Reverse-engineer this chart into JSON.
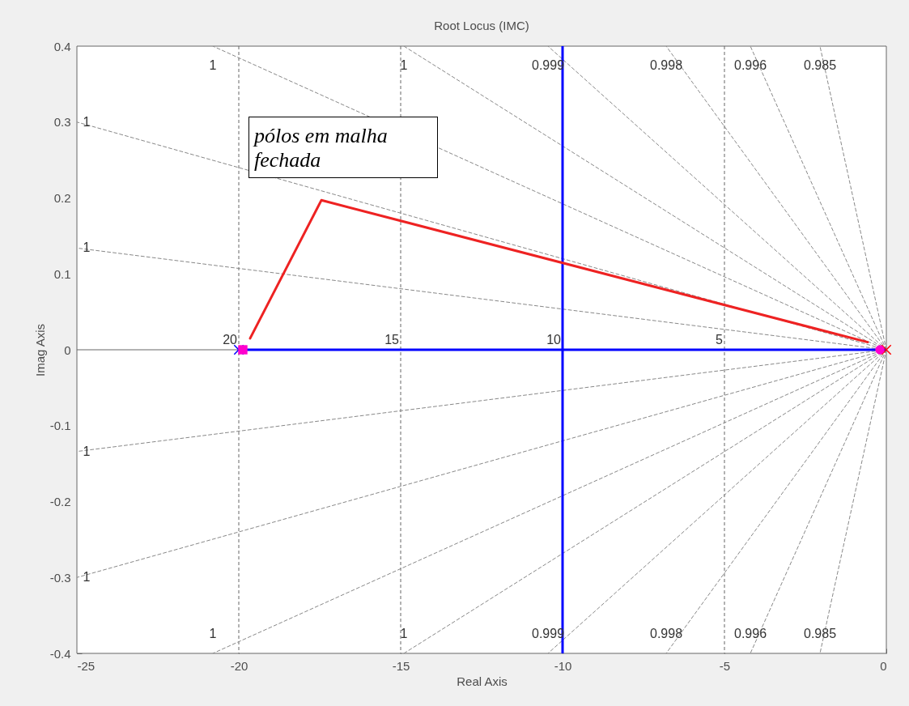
{
  "chart_data": {
    "type": "line",
    "title": "Root Locus (IMC)",
    "xlabel": "Real Axis",
    "ylabel": "Imag Axis",
    "xlim": [
      -25,
      0
    ],
    "ylim": [
      -0.4,
      0.4
    ],
    "xticks": [
      -25,
      -20,
      -15,
      -10,
      -5,
      0
    ],
    "yticks": [
      -0.4,
      -0.3,
      -0.2,
      -0.1,
      0,
      0.1,
      0.2,
      0.3,
      0.4
    ],
    "grid": false,
    "series": [
      {
        "name": "1",
        "color": "#888888",
        "line_style": "dashed",
        "x": [
          0,
          -20.8
        ],
        "values": [
          0,
          0.4
        ]
      },
      {
        "name": "1",
        "color": "#888888",
        "line_style": "dashed",
        "x": [
          0,
          -14.9
        ],
        "values": [
          0,
          0.4
        ]
      },
      {
        "name": "0.999",
        "color": "#888888",
        "line_style": "dashed",
        "x": [
          0,
          -10.45
        ],
        "values": [
          0,
          0.4
        ]
      },
      {
        "name": "0.998",
        "color": "#888888",
        "line_style": "dashed",
        "x": [
          0,
          -6.8
        ],
        "values": [
          0,
          0.4
        ]
      },
      {
        "name": "0.996",
        "color": "#888888",
        "line_style": "dashed",
        "x": [
          0,
          -4.2
        ],
        "values": [
          0,
          0.4
        ]
      },
      {
        "name": "0.985",
        "color": "#888888",
        "line_style": "dashed",
        "x": [
          0,
          -2.05
        ],
        "values": [
          0,
          0.4
        ]
      },
      {
        "name": "1",
        "color": "#888888",
        "line_style": "dashed",
        "x": [
          0,
          -25
        ],
        "values": [
          0,
          0.3
        ]
      },
      {
        "name": "1",
        "color": "#888888",
        "line_style": "dashed",
        "x": [
          0,
          -25
        ],
        "values": [
          0,
          0.134
        ]
      },
      {
        "name": "1",
        "color": "#888888",
        "line_style": "dashed",
        "x": [
          0,
          -20.8
        ],
        "values": [
          0,
          -0.4
        ]
      },
      {
        "name": "1",
        "color": "#888888",
        "line_style": "dashed",
        "x": [
          0,
          -14.9
        ],
        "values": [
          0,
          -0.4
        ]
      },
      {
        "name": "0.999",
        "color": "#888888",
        "line_style": "dashed",
        "x": [
          0,
          -10.45
        ],
        "values": [
          0,
          -0.4
        ]
      },
      {
        "name": "0.998",
        "color": "#888888",
        "line_style": "dashed",
        "x": [
          0,
          -6.8
        ],
        "values": [
          0,
          -0.4
        ]
      },
      {
        "name": "0.996",
        "color": "#888888",
        "line_style": "dashed",
        "x": [
          0,
          -4.2
        ],
        "values": [
          0,
          -0.4
        ]
      },
      {
        "name": "0.985",
        "color": "#888888",
        "line_style": "dashed",
        "x": [
          0,
          -2.05
        ],
        "values": [
          0,
          -0.4
        ]
      },
      {
        "name": "1",
        "color": "#888888",
        "line_style": "dashed",
        "x": [
          0,
          -25
        ],
        "values": [
          0,
          -0.3
        ]
      },
      {
        "name": "1",
        "color": "#888888",
        "line_style": "dashed",
        "x": [
          0,
          -25
        ],
        "values": [
          0,
          -0.134
        ]
      },
      {
        "color": "#0000ff",
        "line_style": "solid",
        "x": [
          -20,
          0
        ],
        "values": [
          0,
          0
        ]
      },
      {
        "color": "#0000ff",
        "line_style": "solid",
        "x": [
          -10,
          -10
        ],
        "values": [
          -0.4,
          0.4
        ]
      },
      {
        "color": "#ee2222",
        "line_style": "solid",
        "x": [
          -19.65,
          -17.45,
          -0.575
        ],
        "values": [
          0.015,
          0.197,
          0.01
        ]
      },
      {
        "type": "scatter",
        "color": "#0000ff",
        "marker": "cross",
        "x": [
          -20
        ],
        "values": [
          0
        ]
      },
      {
        "type": "scatter",
        "color": "#ff0000",
        "marker": "cross",
        "x": [
          0
        ],
        "values": [
          0
        ]
      },
      {
        "type": "scatter",
        "color": "#ff00cc",
        "marker": "square",
        "x": [
          -19.875
        ],
        "values": [
          0
        ]
      },
      {
        "type": "scatter",
        "color": "#ff00cc",
        "marker": "circle",
        "x": [
          -0.2
        ],
        "values": [
          0
        ]
      }
    ],
    "ref_lines": [
      {
        "axis": "y",
        "value": 0,
        "color": "#666666",
        "line_style": "solid"
      },
      {
        "axis": "x",
        "value": -20,
        "color": "#666666",
        "line_style": "dashed"
      },
      {
        "axis": "x",
        "value": -15,
        "color": "#666666",
        "line_style": "dashed"
      },
      {
        "axis": "x",
        "value": -5,
        "color": "#666666",
        "line_style": "dashed"
      }
    ],
    "annotations": [
      "pólos em malha\nfechada",
      {
        "text": "20",
        "x": -20,
        "y": 0
      },
      {
        "text": "15",
        "x": -15,
        "y": 0
      },
      {
        "text": "10",
        "x": -10,
        "y": 0
      },
      {
        "text": "5",
        "x": -5,
        "y": 0
      }
    ]
  }
}
